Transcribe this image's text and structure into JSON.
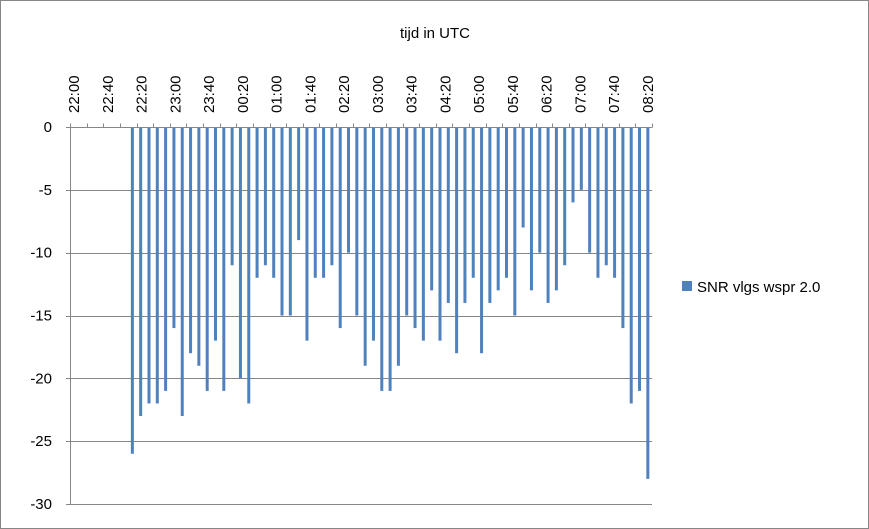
{
  "chart_data": {
    "type": "bar",
    "title": "tijd in UTC",
    "xlabel": "",
    "ylabel": "",
    "ylim": [
      -30,
      0
    ],
    "yticks": [
      0,
      -5,
      -10,
      -15,
      -20,
      -25,
      -30
    ],
    "xtick_labels": [
      "22:00",
      "22:40",
      "22:20",
      "23:00",
      "23:40",
      "00:20",
      "01:00",
      "01:40",
      "02:20",
      "03:00",
      "03:40",
      "04:20",
      "05:00",
      "05:40",
      "06:20",
      "07:00",
      "07:40",
      "08:20"
    ],
    "x_axis_position": "top",
    "grid": true,
    "legend_position": "right",
    "colors": {
      "series": "#4f81bd",
      "grid": "#868686",
      "frame": "#868686"
    },
    "series": [
      {
        "name": "SNR vlgs wspr 2.0",
        "values": [
          null,
          null,
          null,
          null,
          null,
          null,
          null,
          -26,
          -23,
          -22,
          -22,
          -21,
          -16,
          -23,
          -18,
          -19,
          -21,
          -17,
          -21,
          -11,
          -20,
          -22,
          -12,
          -11,
          -12,
          -15,
          -15,
          -9,
          -17,
          -12,
          -12,
          -11,
          -16,
          -10,
          -15,
          -19,
          -17,
          -21,
          -21,
          -19,
          -15,
          -16,
          -17,
          -13,
          -17,
          -14,
          -18,
          -14,
          -12,
          -18,
          -14,
          -13,
          -12,
          -15,
          -8,
          -13,
          -10,
          -14,
          -13,
          -11,
          -6,
          -5,
          -10,
          -12,
          -11,
          -12,
          -16,
          -22,
          -21,
          -28
        ]
      }
    ]
  }
}
